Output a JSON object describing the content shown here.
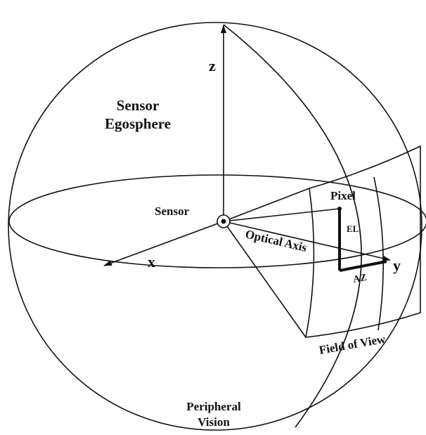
{
  "labels": {
    "z": "z",
    "egosphere": [
      "Sensor",
      "Egosphere"
    ],
    "sensor": "Sensor",
    "pixel": "Pixel",
    "el": "EL",
    "optical_axis": "Optical Axis",
    "x": "x",
    "y": "y",
    "az": "AZ",
    "field_of_view": "Field of View",
    "peripheral_vision": [
      "Peripheral",
      "Vision"
    ]
  }
}
